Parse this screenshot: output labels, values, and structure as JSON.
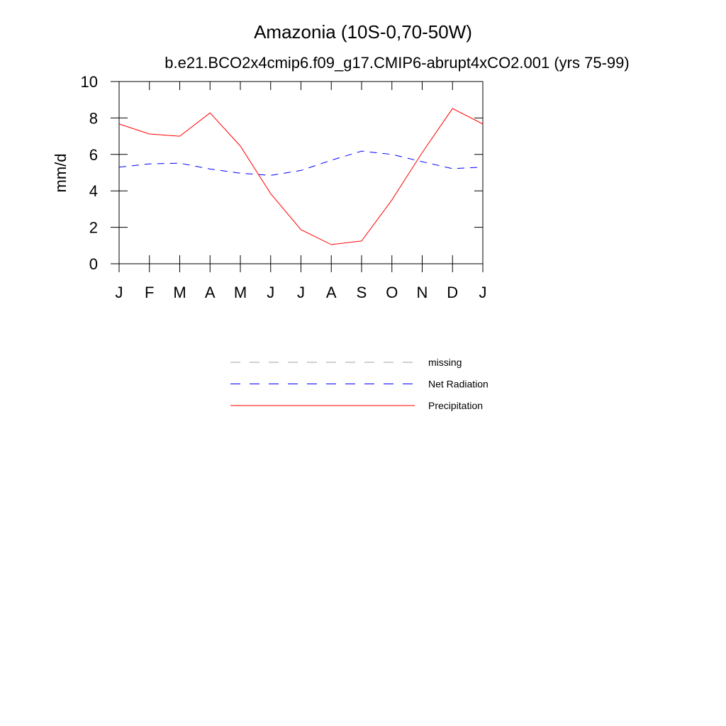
{
  "chart_data": {
    "type": "line",
    "title": "Amazonia (10S-0,70-50W)",
    "subtitle": "b.e21.BCO2x4cmip6.f09_g17.CMIP6-abrupt4xCO2.001 (yrs 75-99)",
    "y_label": "mm/d",
    "categories": [
      "J",
      "F",
      "M",
      "A",
      "M",
      "J",
      "J",
      "A",
      "S",
      "O",
      "N",
      "D",
      "J"
    ],
    "series": [
      {
        "name": "missing",
        "color": "#a0a0a0",
        "dash": true,
        "values": [
          null,
          null,
          null,
          null,
          null,
          null,
          null,
          null,
          null,
          null,
          null,
          null,
          null
        ]
      },
      {
        "name": "Net Radiation",
        "color": "#0000ff",
        "dash": true,
        "values": [
          5.3,
          5.48,
          5.52,
          5.2,
          4.97,
          4.85,
          5.12,
          5.68,
          6.18,
          6.0,
          5.6,
          5.22,
          5.3
        ]
      },
      {
        "name": "Precipitation",
        "color": "#ff0000",
        "dash": false,
        "values": [
          7.67,
          7.12,
          7.0,
          8.28,
          6.46,
          3.85,
          1.87,
          1.05,
          1.25,
          3.5,
          6.1,
          8.52,
          7.67
        ]
      }
    ],
    "ylim": [
      0,
      10
    ],
    "yticks": [
      0,
      2,
      4,
      6,
      8,
      10
    ]
  }
}
